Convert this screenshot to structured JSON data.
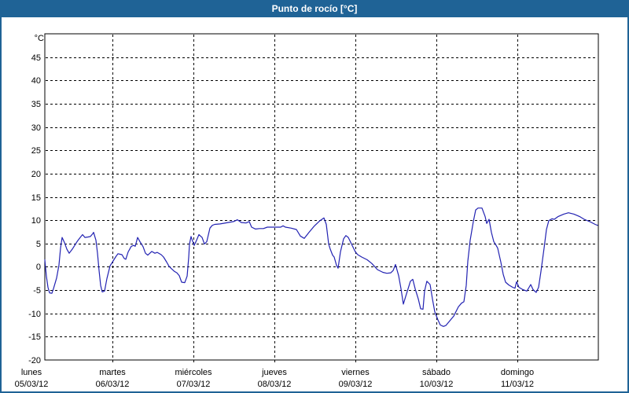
{
  "window": {
    "title": "Punto de rocío [°C]"
  },
  "colors": {
    "frame_blue": "#1f6396",
    "line_blue": "#2222b2",
    "plot_bg": "#ffffff",
    "grid": "#000000",
    "text": "#000000"
  },
  "chart_data": {
    "type": "line",
    "title": "Punto de rocío [°C]",
    "y_unit_label": "°C",
    "ylabel": "",
    "xlabel": "",
    "ylim": [
      -20,
      50
    ],
    "y_ticks": [
      45,
      40,
      35,
      30,
      25,
      20,
      15,
      10,
      5,
      0,
      -5,
      -10,
      -15,
      -20
    ],
    "grid": "dashed",
    "legend_position": "none",
    "x_days": [
      {
        "name": "lunes",
        "date": "05/03/12"
      },
      {
        "name": "martes",
        "date": "06/03/12"
      },
      {
        "name": "miércoles",
        "date": "07/03/12"
      },
      {
        "name": "jueves",
        "date": "08/03/12"
      },
      {
        "name": "viernes",
        "date": "09/03/12"
      },
      {
        "name": "sábado",
        "date": "10/03/12"
      },
      {
        "name": "domingo",
        "date": "11/03/12"
      }
    ],
    "xlim_days": [
      0.165,
      7
    ],
    "series": [
      {
        "name": "Punto de rocío [°C]",
        "color": "#2222b2",
        "x_unit": "days_from_monday_00h",
        "points": [
          [
            0.165,
            1.5
          ],
          [
            0.184,
            -2.0
          ],
          [
            0.204,
            -4.4
          ],
          [
            0.223,
            -5.6
          ],
          [
            0.252,
            -5.7
          ],
          [
            0.272,
            -4.7
          ],
          [
            0.311,
            -2.4
          ],
          [
            0.34,
            0.4
          ],
          [
            0.359,
            4.0
          ],
          [
            0.379,
            6.3
          ],
          [
            0.408,
            5.2
          ],
          [
            0.437,
            3.8
          ],
          [
            0.466,
            2.9
          ],
          [
            0.505,
            3.8
          ],
          [
            0.534,
            4.6
          ],
          [
            0.563,
            5.4
          ],
          [
            0.602,
            6.3
          ],
          [
            0.631,
            6.9
          ],
          [
            0.66,
            6.3
          ],
          [
            0.699,
            6.4
          ],
          [
            0.728,
            6.5
          ],
          [
            0.757,
            7.1
          ],
          [
            0.767,
            7.4
          ],
          [
            0.796,
            5.7
          ],
          [
            0.816,
            2.9
          ],
          [
            0.835,
            -0.8
          ],
          [
            0.854,
            -4.0
          ],
          [
            0.874,
            -5.4
          ],
          [
            0.903,
            -5.2
          ],
          [
            0.932,
            -2.5
          ],
          [
            0.971,
            0.2
          ],
          [
            1.0,
            1.0
          ],
          [
            1.039,
            2.1
          ],
          [
            1.068,
            2.8
          ],
          [
            1.117,
            2.6
          ],
          [
            1.146,
            1.8
          ],
          [
            1.165,
            1.6
          ],
          [
            1.194,
            3.2
          ],
          [
            1.233,
            4.4
          ],
          [
            1.262,
            4.6
          ],
          [
            1.282,
            4.4
          ],
          [
            1.311,
            6.3
          ],
          [
            1.34,
            5.4
          ],
          [
            1.379,
            4.3
          ],
          [
            1.408,
            2.9
          ],
          [
            1.437,
            2.5
          ],
          [
            1.485,
            3.3
          ],
          [
            1.524,
            2.9
          ],
          [
            1.553,
            3.1
          ],
          [
            1.602,
            2.6
          ],
          [
            1.631,
            2.1
          ],
          [
            1.67,
            1.0
          ],
          [
            1.699,
            0.1
          ],
          [
            1.728,
            -0.4
          ],
          [
            1.767,
            -1.0
          ],
          [
            1.796,
            -1.3
          ],
          [
            1.825,
            -1.9
          ],
          [
            1.854,
            -3.3
          ],
          [
            1.893,
            -3.4
          ],
          [
            1.922,
            -2.0
          ],
          [
            1.942,
            2.0
          ],
          [
            1.951,
            4.9
          ],
          [
            1.971,
            6.5
          ],
          [
            1.99,
            5.5
          ],
          [
            2.01,
            4.6
          ],
          [
            2.039,
            5.7
          ],
          [
            2.068,
            6.9
          ],
          [
            2.107,
            6.3
          ],
          [
            2.136,
            4.9
          ],
          [
            2.165,
            5.4
          ],
          [
            2.204,
            8.3
          ],
          [
            2.233,
            8.9
          ],
          [
            2.262,
            9.1
          ],
          [
            2.33,
            9.2
          ],
          [
            2.427,
            9.5
          ],
          [
            2.495,
            9.7
          ],
          [
            2.544,
            10.1
          ],
          [
            2.592,
            9.5
          ],
          [
            2.65,
            9.4
          ],
          [
            2.689,
            9.7
          ],
          [
            2.718,
            8.5
          ],
          [
            2.767,
            8.1
          ],
          [
            2.816,
            8.2
          ],
          [
            2.864,
            8.2
          ],
          [
            2.913,
            8.5
          ],
          [
            2.99,
            8.5
          ],
          [
            3.078,
            8.5
          ],
          [
            3.107,
            8.8
          ],
          [
            3.136,
            8.5
          ],
          [
            3.204,
            8.3
          ],
          [
            3.272,
            8.0
          ],
          [
            3.32,
            6.6
          ],
          [
            3.369,
            6.1
          ],
          [
            3.427,
            7.4
          ],
          [
            3.495,
            8.8
          ],
          [
            3.563,
            9.9
          ],
          [
            3.612,
            10.5
          ],
          [
            3.641,
            9.1
          ],
          [
            3.67,
            4.9
          ],
          [
            3.689,
            3.8
          ],
          [
            3.718,
            2.5
          ],
          [
            3.738,
            2.1
          ],
          [
            3.767,
            0.3
          ],
          [
            3.786,
            -0.3
          ],
          [
            3.816,
            3.2
          ],
          [
            3.854,
            6.0
          ],
          [
            3.883,
            6.7
          ],
          [
            3.913,
            6.3
          ],
          [
            3.951,
            4.9
          ],
          [
            4.0,
            3.2
          ],
          [
            4.029,
            2.6
          ],
          [
            4.078,
            2.1
          ],
          [
            4.146,
            1.5
          ],
          [
            4.204,
            0.7
          ],
          [
            4.272,
            -0.6
          ],
          [
            4.34,
            -1.2
          ],
          [
            4.388,
            -1.4
          ],
          [
            4.437,
            -1.3
          ],
          [
            4.466,
            -0.8
          ],
          [
            4.495,
            0.5
          ],
          [
            4.534,
            -1.9
          ],
          [
            4.563,
            -4.7
          ],
          [
            4.592,
            -8.0
          ],
          [
            4.631,
            -5.8
          ],
          [
            4.68,
            -3.1
          ],
          [
            4.709,
            -2.7
          ],
          [
            4.738,
            -4.7
          ],
          [
            4.777,
            -6.9
          ],
          [
            4.806,
            -9.0
          ],
          [
            4.835,
            -9.1
          ],
          [
            4.854,
            -5.2
          ],
          [
            4.883,
            -3.1
          ],
          [
            4.922,
            -3.8
          ],
          [
            4.951,
            -6.9
          ],
          [
            4.981,
            -9.7
          ],
          [
            5.019,
            -11.4
          ],
          [
            5.049,
            -12.5
          ],
          [
            5.087,
            -12.8
          ],
          [
            5.117,
            -12.6
          ],
          [
            5.146,
            -12.0
          ],
          [
            5.214,
            -10.6
          ],
          [
            5.272,
            -8.6
          ],
          [
            5.311,
            -7.8
          ],
          [
            5.34,
            -7.5
          ],
          [
            5.369,
            -4.0
          ],
          [
            5.388,
            1.2
          ],
          [
            5.417,
            5.7
          ],
          [
            5.456,
            9.7
          ],
          [
            5.485,
            12.2
          ],
          [
            5.515,
            12.6
          ],
          [
            5.563,
            12.6
          ],
          [
            5.602,
            10.8
          ],
          [
            5.621,
            9.3
          ],
          [
            5.65,
            10.2
          ],
          [
            5.68,
            7.4
          ],
          [
            5.709,
            5.4
          ],
          [
            5.728,
            4.9
          ],
          [
            5.757,
            4.0
          ],
          [
            5.796,
            1.0
          ],
          [
            5.825,
            -1.6
          ],
          [
            5.854,
            -3.3
          ],
          [
            5.893,
            -3.9
          ],
          [
            5.942,
            -4.4
          ],
          [
            5.971,
            -4.6
          ],
          [
            5.99,
            -3.2
          ],
          [
            6.019,
            -4.4
          ],
          [
            6.068,
            -4.9
          ],
          [
            6.117,
            -5.2
          ],
          [
            6.146,
            -4.4
          ],
          [
            6.165,
            -3.8
          ],
          [
            6.194,
            -4.9
          ],
          [
            6.233,
            -5.5
          ],
          [
            6.262,
            -4.4
          ],
          [
            6.291,
            -1.0
          ],
          [
            6.33,
            4.0
          ],
          [
            6.359,
            8.0
          ],
          [
            6.388,
            9.9
          ],
          [
            6.427,
            10.3
          ],
          [
            6.456,
            10.2
          ],
          [
            6.505,
            10.8
          ],
          [
            6.573,
            11.3
          ],
          [
            6.631,
            11.6
          ],
          [
            6.699,
            11.3
          ],
          [
            6.767,
            10.8
          ],
          [
            6.825,
            10.2
          ],
          [
            6.893,
            9.7
          ],
          [
            6.961,
            9.1
          ],
          [
            6.99,
            8.9
          ]
        ]
      }
    ]
  }
}
